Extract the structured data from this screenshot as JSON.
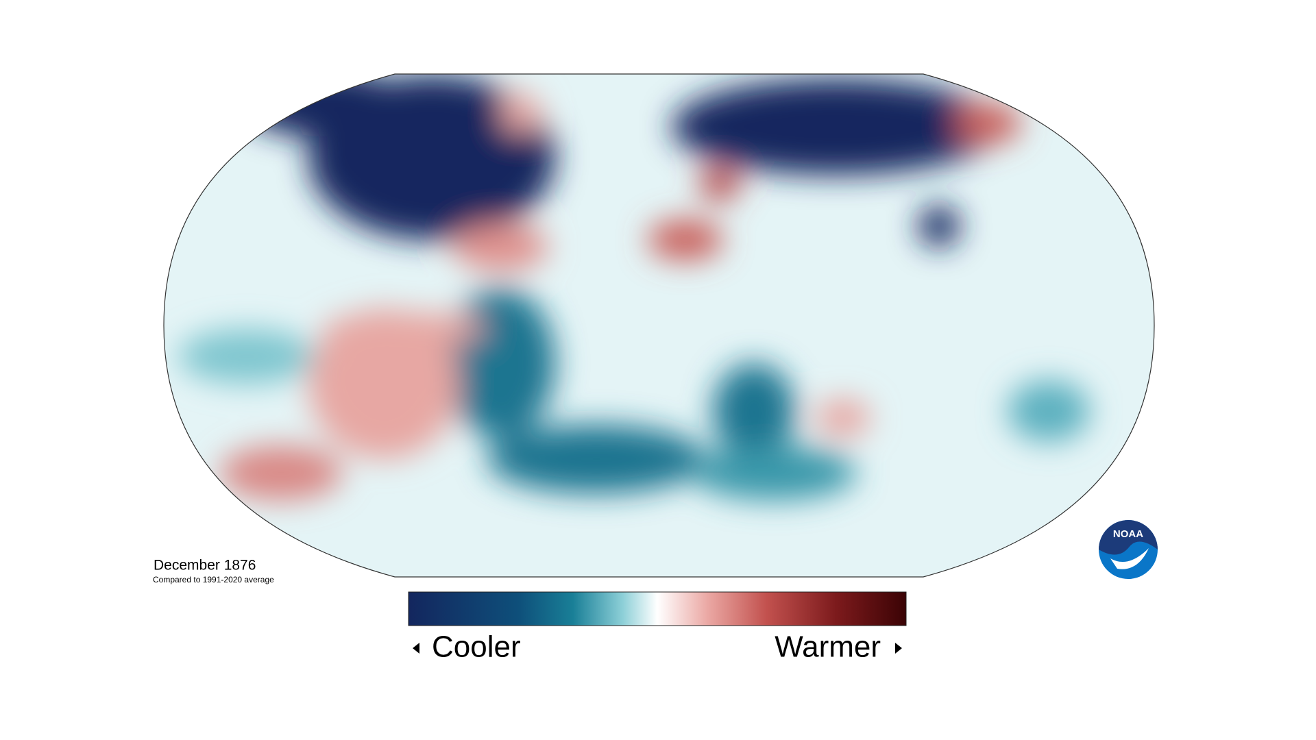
{
  "caption": {
    "title": "December 1876",
    "subtitle": "Compared to 1991-2020 average"
  },
  "legend": {
    "low_label": "Cooler",
    "high_label": "Warmer"
  },
  "logo": {
    "text": "NOAA"
  }
}
